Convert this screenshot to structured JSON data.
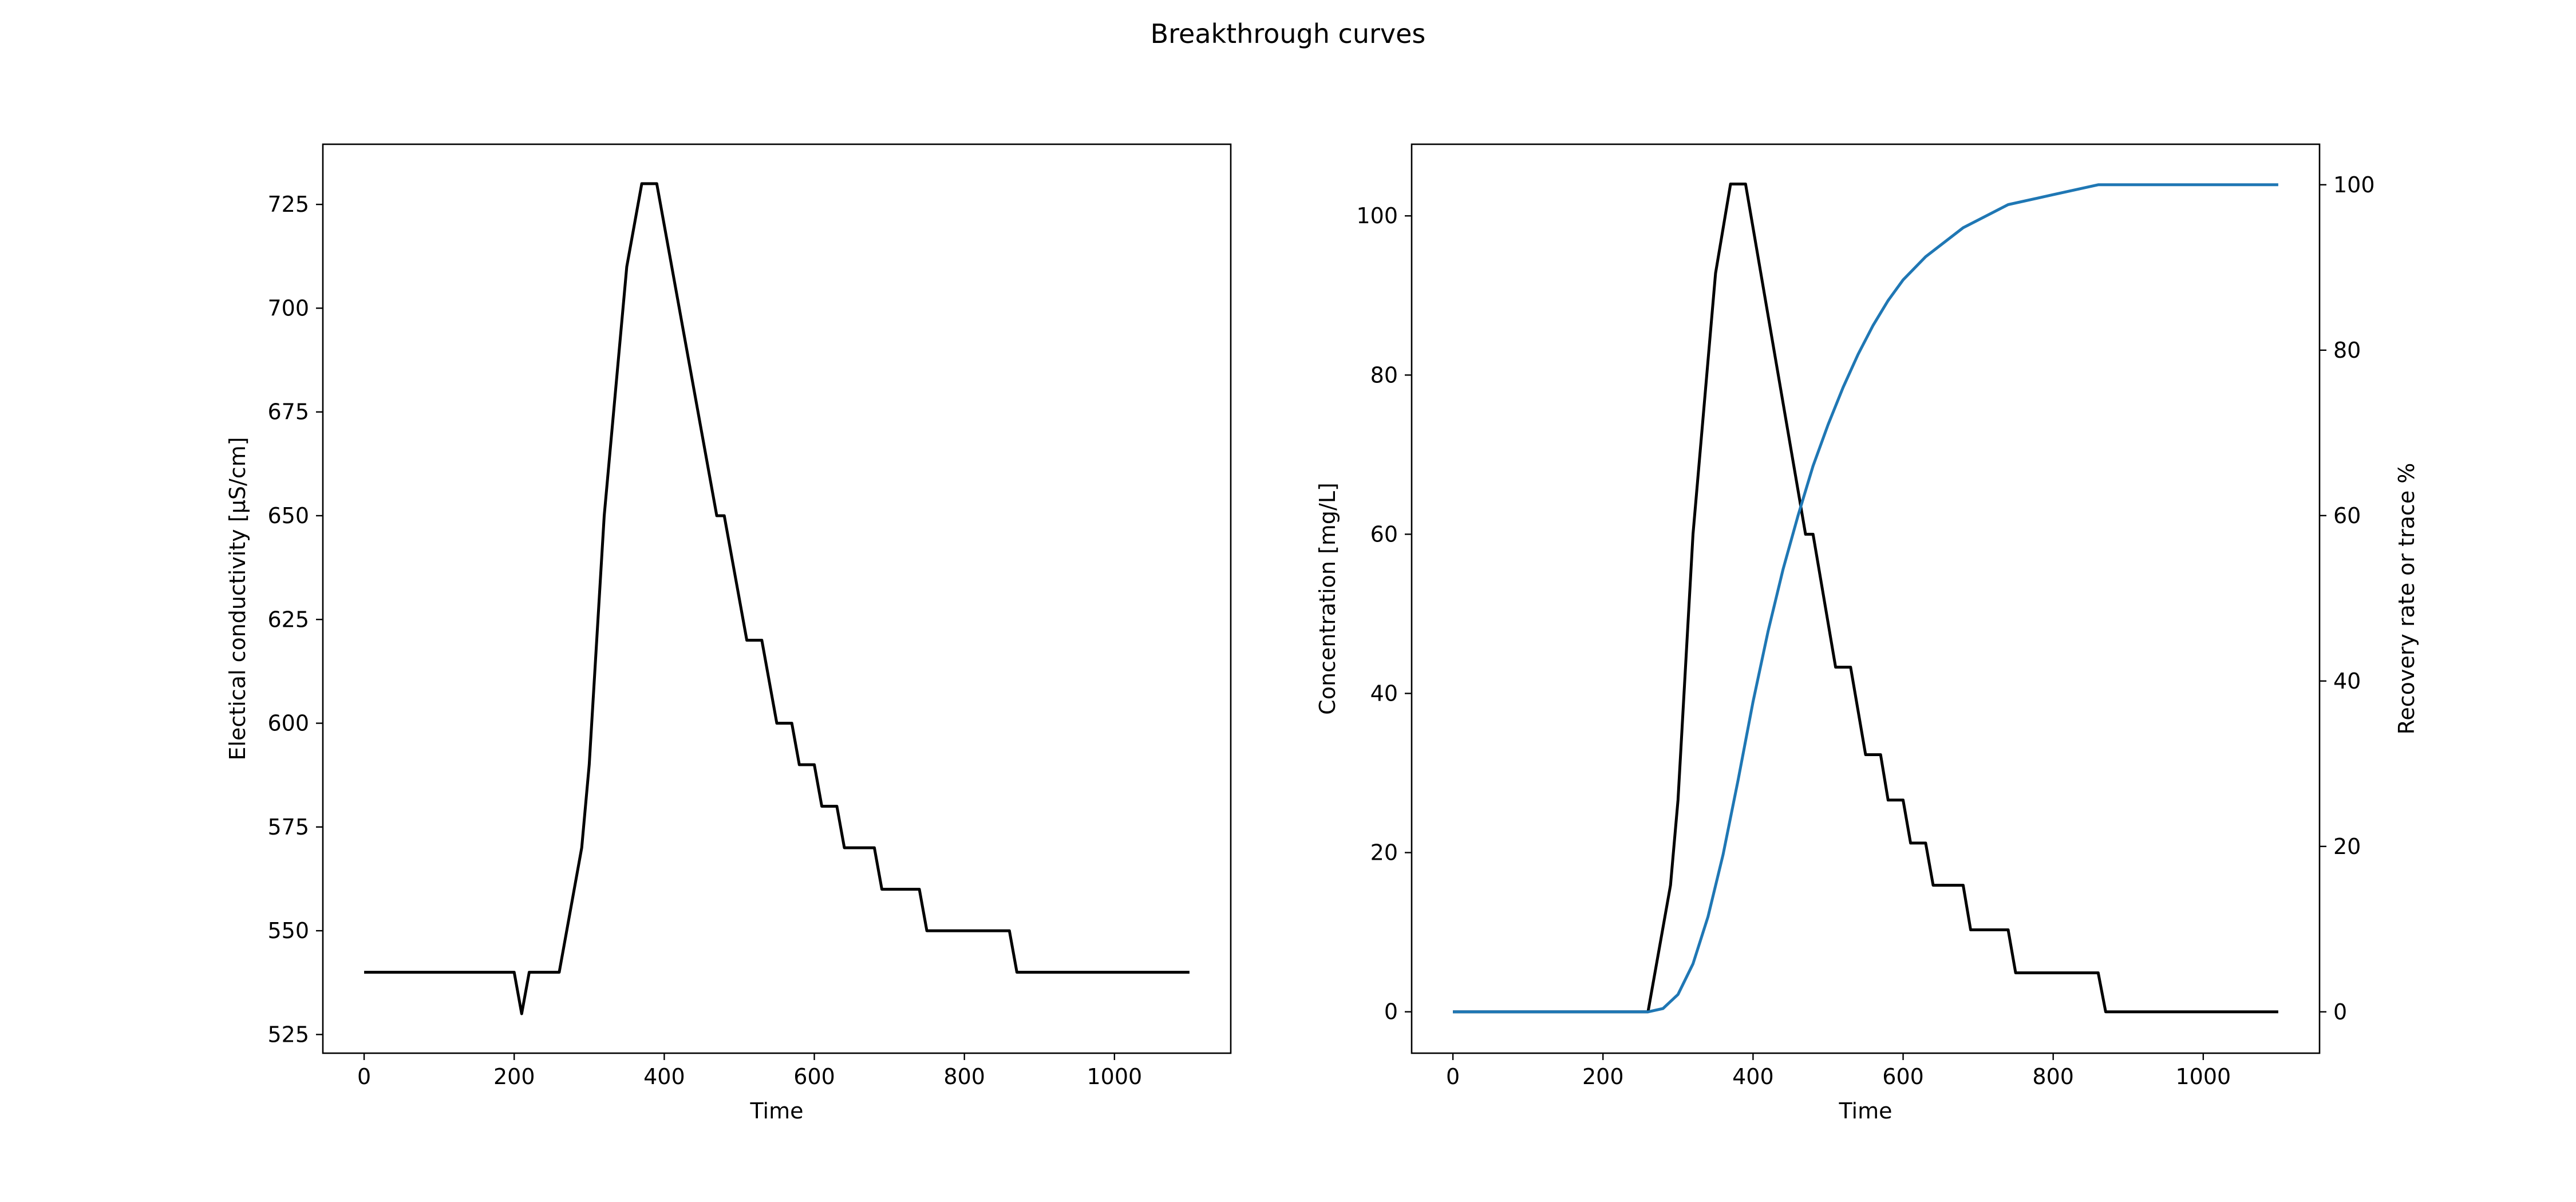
{
  "figure": {
    "title": "Breakthrough curves"
  },
  "colors": {
    "ec_line": "#000000",
    "conc_line": "#000000",
    "recovery_line": "#1f77b4"
  },
  "chart_data": [
    {
      "type": "line",
      "title": "",
      "xlabel": "Time",
      "ylabel": "Electical conductivity [µS/cm]",
      "xlim": [
        -55,
        1155
      ],
      "ylim": [
        520.5,
        739.5
      ],
      "xticks": [
        0,
        200,
        400,
        600,
        800,
        1000
      ],
      "yticks": [
        525,
        550,
        575,
        600,
        625,
        650,
        675,
        700,
        725
      ],
      "grid": false,
      "series": [
        {
          "x": [
            0,
            200,
            210,
            220,
            260,
            290,
            300,
            320,
            350,
            370,
            390,
            470,
            480,
            510,
            530,
            550,
            570,
            580,
            600,
            610,
            630,
            640,
            680,
            690,
            740,
            750,
            860,
            870,
            1100
          ],
          "y": [
            540,
            540,
            530,
            540,
            540,
            570,
            590,
            650,
            710,
            730,
            730,
            650,
            650,
            620,
            620,
            600,
            600,
            590,
            590,
            580,
            580,
            570,
            570,
            560,
            560,
            550,
            550,
            540,
            540
          ]
        }
      ]
    },
    {
      "type": "line",
      "title": "",
      "xlabel": "Time",
      "ylabel": "Concentration [mg/L]",
      "y2label": "Recovery rate or trace %",
      "xlim": [
        -55,
        1155
      ],
      "ylim": [
        -5.2,
        109.0
      ],
      "y2lim": [
        -5.0,
        104.9
      ],
      "xticks": [
        0,
        200,
        400,
        600,
        800,
        1000
      ],
      "yticks": [
        0,
        20,
        40,
        60,
        80,
        100
      ],
      "y2ticks": [
        0,
        20,
        40,
        60,
        80,
        100
      ],
      "grid": false,
      "series": [
        {
          "axis": "left",
          "x": [
            0,
            260,
            290,
            300,
            320,
            350,
            370,
            390,
            470,
            480,
            510,
            530,
            550,
            570,
            580,
            600,
            610,
            630,
            640,
            680,
            690,
            740,
            750,
            860,
            870,
            1100
          ],
          "y": [
            0,
            0,
            15.9,
            26.6,
            60,
            92.8,
            104,
            104,
            60,
            60,
            43.3,
            43.3,
            32.3,
            32.3,
            26.6,
            26.6,
            21.2,
            21.2,
            15.9,
            15.9,
            10.3,
            10.3,
            4.9,
            4.9,
            0,
            0
          ]
        },
        {
          "axis": "right",
          "x": [
            0,
            260,
            280,
            300,
            320,
            340,
            360,
            380,
            400,
            420,
            440,
            460,
            480,
            500,
            520,
            540,
            560,
            580,
            600,
            630,
            680,
            740,
            800,
            860,
            900,
            1000,
            1100
          ],
          "y": [
            0,
            0,
            0.4,
            2.1,
            5.8,
            11.5,
            19,
            28,
            37.5,
            46,
            53.5,
            60,
            66,
            71,
            75.5,
            79.5,
            83,
            86,
            88.5,
            91.3,
            94.8,
            97.6,
            98.8,
            100,
            100,
            100,
            100
          ]
        }
      ]
    }
  ]
}
